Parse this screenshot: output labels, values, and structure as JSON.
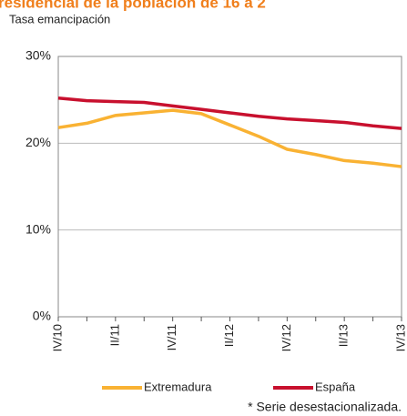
{
  "chart_data": {
    "type": "line",
    "title": "residencial de la población de 16 a 2",
    "y_label": "Tasa emancipación",
    "categories": [
      "IV/10",
      null,
      "II/11",
      null,
      "IV/11",
      null,
      "II/12",
      null,
      "IV/12",
      null,
      "II/13",
      null,
      "IV/13"
    ],
    "series": [
      {
        "name": "Extremadura",
        "color": "#f9b233",
        "values": [
          21.8,
          22.3,
          23.2,
          23.5,
          23.8,
          23.4,
          22.1,
          20.8,
          19.3,
          18.7,
          18.0,
          17.7,
          17.3
        ]
      },
      {
        "name": "España",
        "color": "#c8102e",
        "values": [
          25.2,
          24.9,
          24.8,
          24.7,
          24.3,
          23.9,
          23.5,
          23.1,
          22.8,
          22.6,
          22.4,
          22.0,
          21.7
        ]
      }
    ],
    "ylim": [
      0,
      30
    ],
    "yticks": [
      {
        "value": 0,
        "label": "0%"
      },
      {
        "value": 10,
        "label": "10%"
      },
      {
        "value": 20,
        "label": "20%"
      },
      {
        "value": 30,
        "label": "30%"
      }
    ],
    "grid": true,
    "legend": "bottom",
    "footnote": "* Serie desestacionalizada."
  }
}
